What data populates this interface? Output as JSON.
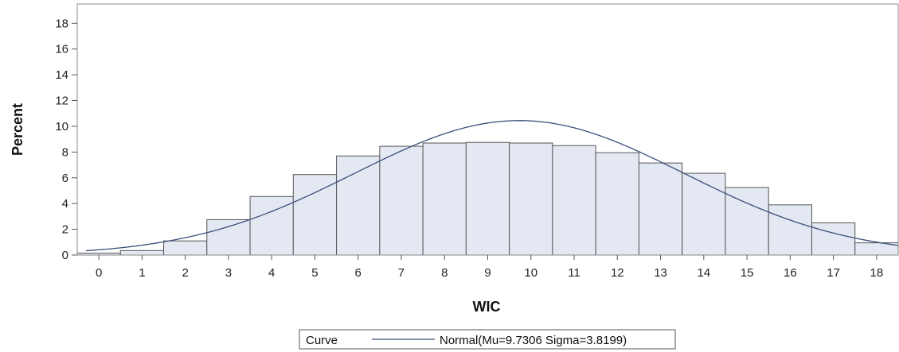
{
  "chart_data": {
    "type": "bar",
    "xlabel": "WIC",
    "ylabel": "Percent",
    "categories": [
      0,
      1,
      2,
      3,
      4,
      5,
      6,
      7,
      8,
      9,
      10,
      11,
      12,
      13,
      14,
      15,
      16,
      17,
      18
    ],
    "values": [
      0.15,
      0.35,
      1.1,
      2.75,
      4.55,
      6.25,
      7.7,
      8.45,
      8.7,
      8.75,
      8.7,
      8.5,
      7.95,
      7.15,
      6.35,
      5.25,
      3.9,
      2.5,
      0.95
    ],
    "ylim": [
      0,
      19.5
    ],
    "xlim": [
      -0.5,
      18.5
    ],
    "yticks": [
      0,
      2,
      4,
      6,
      8,
      10,
      12,
      14,
      16,
      18
    ],
    "xticks": [
      0,
      1,
      2,
      3,
      4,
      5,
      6,
      7,
      8,
      9,
      10,
      11,
      12,
      13,
      14,
      15,
      16,
      17,
      18
    ],
    "grid": false,
    "bar_color": "#e3e8f2",
    "bar_edge_color": "#555555",
    "curve": {
      "name": "Normal(Mu=9.7306 Sigma=3.8199)",
      "distribution": "normal",
      "mu": 9.7306,
      "sigma": 3.8199,
      "color": "#3b4f7a"
    },
    "legend": {
      "title": "Curve",
      "entries": [
        "Normal(Mu=9.7306 Sigma=3.8199)"
      ],
      "placement": "bottom-center"
    }
  }
}
